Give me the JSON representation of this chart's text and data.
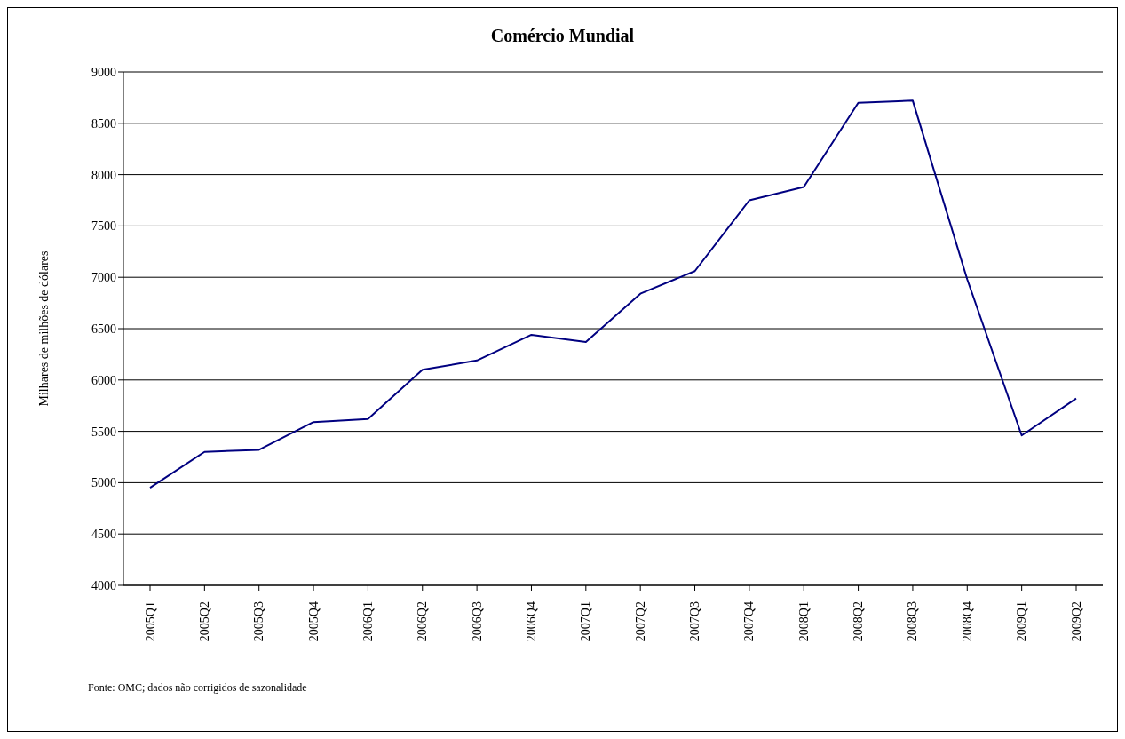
{
  "chart_data": {
    "type": "line",
    "title": "Comércio Mundial",
    "ylabel": "Milhares de milhões de dólares",
    "categories": [
      "2005Q1",
      "2005Q2",
      "2005Q3",
      "2005Q4",
      "2006Q1",
      "2006Q2",
      "2006Q3",
      "2006Q4",
      "2007Q1",
      "2007Q2",
      "2007Q3",
      "2007Q4",
      "2008Q1",
      "2008Q2",
      "2008Q3",
      "2008Q4",
      "2009Q1",
      "2009Q2"
    ],
    "series": [
      {
        "color": "#000080",
        "values": [
          4950,
          5300,
          5320,
          5590,
          5620,
          6100,
          6190,
          6440,
          6370,
          6840,
          7060,
          7750,
          7880,
          8700,
          8720,
          6980,
          5460,
          5820
        ]
      }
    ],
    "ylim": [
      4000,
      9000
    ],
    "yticks": [
      4000,
      4500,
      5000,
      5500,
      6000,
      6500,
      7000,
      7500,
      8000,
      8500,
      9000
    ],
    "grid": "y",
    "legend": false,
    "marker": "none",
    "line_style": "solid",
    "annotations": [
      "Fonte: OMC; dados não corrigidos de sazonalidade"
    ]
  }
}
